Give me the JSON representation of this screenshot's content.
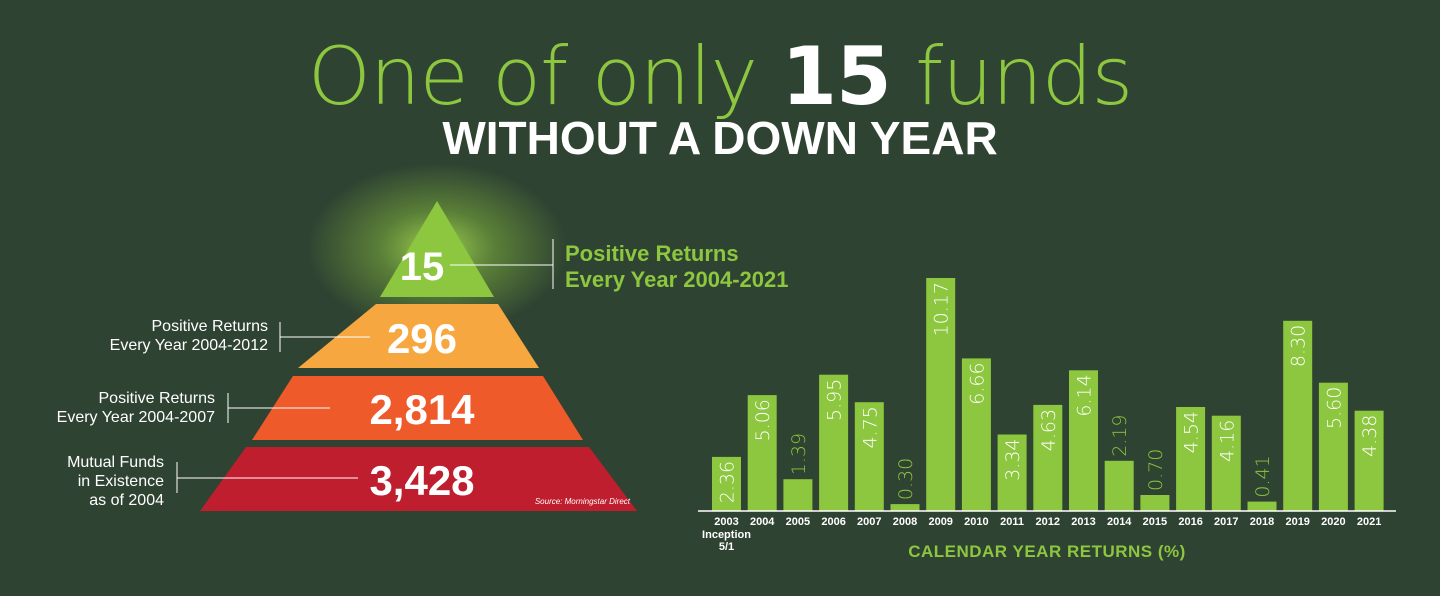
{
  "headline": {
    "pre": "One of only ",
    "number": "15",
    "post": " funds",
    "subtitle": "WITHOUT A DOWN YEAR"
  },
  "pyramid": {
    "tiers": [
      {
        "value": "15",
        "color": "#8dc63f",
        "label_lines": [
          "Positive Returns",
          "Every Year 2004-2021"
        ]
      },
      {
        "value": "296",
        "color": "#f7a740",
        "label_lines": [
          "Positive Returns",
          "Every Year 2004-2012"
        ]
      },
      {
        "value": "2,814",
        "color": "#ee5a2a",
        "label_lines": [
          "Positive Returns",
          "Every Year 2004-2007"
        ]
      },
      {
        "value": "3,428",
        "color": "#be1e2d",
        "label_lines": [
          "Mutual Funds",
          "in Existence",
          "as of 2004"
        ]
      }
    ],
    "source": "Source: Morningstar Direct"
  },
  "chart_data": {
    "type": "bar",
    "categories": [
      "2003",
      "2004",
      "2005",
      "2006",
      "2007",
      "2008",
      "2009",
      "2010",
      "2011",
      "2012",
      "2013",
      "2014",
      "2015",
      "2016",
      "2017",
      "2018",
      "2019",
      "2020",
      "2021"
    ],
    "category_sublabels": {
      "2003": [
        "Inception",
        "5/1"
      ]
    },
    "values": [
      2.36,
      5.06,
      1.39,
      5.95,
      4.75,
      0.3,
      10.17,
      6.66,
      3.34,
      4.63,
      6.14,
      2.19,
      0.7,
      4.54,
      4.16,
      0.41,
      8.3,
      5.6,
      4.38
    ],
    "value_labels": [
      "2.36",
      "5.06",
      "1.39",
      "5.95",
      "4.75",
      "0.30",
      "10.17",
      "6.66",
      "3.34",
      "4.63",
      "6.14",
      "2.19",
      "0.70",
      "4.54",
      "4.16",
      "0.41",
      "8.30",
      "5.60",
      "4.38"
    ],
    "xlabel": "CALENDAR YEAR RETURNS (%)",
    "ylabel": "",
    "ylim": [
      0,
      10.17
    ],
    "bar_color": "#8dc63f",
    "grid": false
  }
}
